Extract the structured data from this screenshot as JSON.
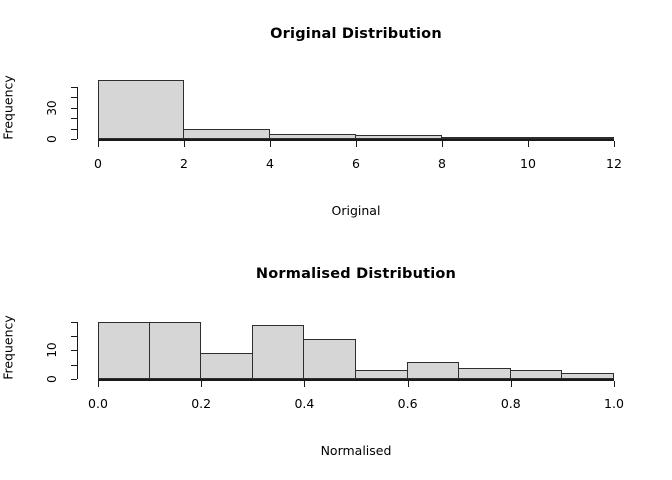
{
  "figure": {
    "background": "#ffffff",
    "bar_fill": "#d6d6d6",
    "bar_border": "#2e2e2e",
    "axis_color": "#1a1a1a",
    "text_color": "#000000"
  },
  "chart_data": [
    {
      "type": "bar",
      "kind": "histogram",
      "title": "Original Distribution",
      "xlabel": "Original",
      "ylabel": "Frequency",
      "xlim": [
        0,
        12
      ],
      "bin_width": 2,
      "bin_edges": [
        0,
        2,
        4,
        6,
        8,
        10,
        12
      ],
      "counts": [
        56,
        10,
        5,
        4,
        2,
        1
      ],
      "x_ticks": [
        {
          "v": 0,
          "label": "0"
        },
        {
          "v": 2,
          "label": "2"
        },
        {
          "v": 4,
          "label": "4"
        },
        {
          "v": 6,
          "label": "6"
        },
        {
          "v": 8,
          "label": "8"
        },
        {
          "v": 10,
          "label": "10"
        },
        {
          "v": 12,
          "label": "12"
        }
      ],
      "y_ticks": [
        {
          "v": 0,
          "label": "0"
        },
        {
          "v": 10,
          "label": ""
        },
        {
          "v": 20,
          "label": ""
        },
        {
          "v": 30,
          "label": "30"
        },
        {
          "v": 40,
          "label": ""
        },
        {
          "v": 50,
          "label": ""
        }
      ],
      "y_display_max": 60,
      "grid": false,
      "legend": false
    },
    {
      "type": "bar",
      "kind": "histogram",
      "title": "Normalised Distribution",
      "xlabel": "Normalised",
      "ylabel": "Frequency",
      "xlim": [
        0,
        1
      ],
      "bin_width": 0.1,
      "bin_edges": [
        0,
        0.1,
        0.2,
        0.3,
        0.4,
        0.5,
        0.6,
        0.7,
        0.8,
        0.9,
        1.0
      ],
      "counts": [
        20,
        20,
        9,
        19,
        14,
        3,
        6,
        4,
        3,
        2
      ],
      "x_ticks": [
        {
          "v": 0.0,
          "label": "0.0"
        },
        {
          "v": 0.2,
          "label": "0.2"
        },
        {
          "v": 0.4,
          "label": "0.4"
        },
        {
          "v": 0.6,
          "label": "0.6"
        },
        {
          "v": 0.8,
          "label": "0.8"
        },
        {
          "v": 1.0,
          "label": "1.0"
        }
      ],
      "y_ticks": [
        {
          "v": 0,
          "label": "0"
        },
        {
          "v": 5,
          "label": ""
        },
        {
          "v": 10,
          "label": "10"
        },
        {
          "v": 15,
          "label": ""
        },
        {
          "v": 20,
          "label": ""
        }
      ],
      "y_display_max": 22,
      "grid": false,
      "legend": false
    }
  ]
}
